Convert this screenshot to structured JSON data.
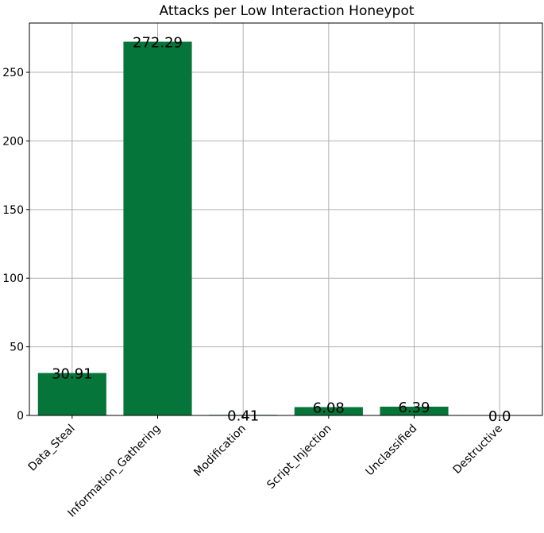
{
  "chart_data": {
    "type": "bar",
    "title": "Attacks per Low Interaction Honeypot",
    "xlabel": "",
    "ylabel": "",
    "categories": [
      "Data_Steal",
      "Information_Gathering",
      "Modification",
      "Script_Injection",
      "Unclassified",
      "Destructive"
    ],
    "values": [
      30.91,
      272.29,
      0.41,
      6.08,
      6.39,
      0.0
    ],
    "data_labels": [
      "30.91",
      "272.29",
      "0.41",
      "6.08",
      "6.39",
      "0.0"
    ],
    "ylim": [
      0,
      285.9
    ],
    "yticks": [
      0,
      50,
      100,
      150,
      200,
      250
    ],
    "grid": true,
    "legend": "none",
    "bar_color": "#05753a"
  }
}
